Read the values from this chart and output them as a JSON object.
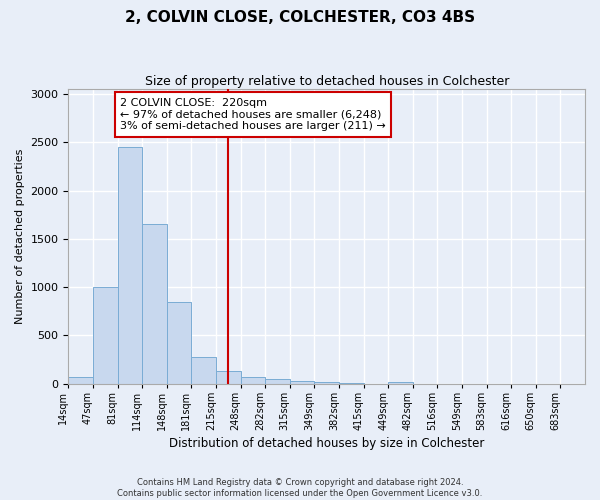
{
  "title": "2, COLVIN CLOSE, COLCHESTER, CO3 4BS",
  "subtitle": "Size of property relative to detached houses in Colchester",
  "xlabel": "Distribution of detached houses by size in Colchester",
  "ylabel": "Number of detached properties",
  "bar_color": "#c8d8ee",
  "bar_edge_color": "#7aacd4",
  "vline_color": "#cc0000",
  "vline_x_index": 6,
  "categories": [
    "14sqm",
    "47sqm",
    "81sqm",
    "114sqm",
    "148sqm",
    "181sqm",
    "215sqm",
    "248sqm",
    "282sqm",
    "315sqm",
    "349sqm",
    "382sqm",
    "415sqm",
    "449sqm",
    "482sqm",
    "516sqm",
    "549sqm",
    "583sqm",
    "616sqm",
    "650sqm",
    "683sqm"
  ],
  "values": [
    70,
    1000,
    2450,
    1650,
    850,
    280,
    130,
    70,
    50,
    30,
    20,
    5,
    0,
    20,
    0,
    0,
    0,
    0,
    0,
    0,
    0
  ],
  "ylim": [
    0,
    3050
  ],
  "yticks": [
    0,
    500,
    1000,
    1500,
    2000,
    2500,
    3000
  ],
  "annotation_text": "2 COLVIN CLOSE:  220sqm\n← 97% of detached houses are smaller (6,248)\n3% of semi-detached houses are larger (211) →",
  "footer_line1": "Contains HM Land Registry data © Crown copyright and database right 2024.",
  "footer_line2": "Contains public sector information licensed under the Open Government Licence v3.0.",
  "background_color": "#e8eef8",
  "plot_bg_color": "#e8eef8",
  "grid_color": "#ffffff"
}
